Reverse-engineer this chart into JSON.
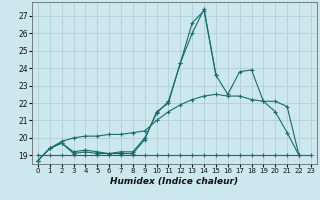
{
  "title": "",
  "xlabel": "Humidex (Indice chaleur)",
  "bg_color": "#cce8ee",
  "grid_color": "#aacccc",
  "line_color": "#1a6b6b",
  "xlim": [
    -0.5,
    23.5
  ],
  "ylim": [
    18.5,
    27.8
  ],
  "xticks": [
    0,
    1,
    2,
    3,
    4,
    5,
    6,
    7,
    8,
    9,
    10,
    11,
    12,
    13,
    14,
    15,
    16,
    17,
    18,
    19,
    20,
    21,
    22,
    23
  ],
  "yticks": [
    19,
    20,
    21,
    22,
    23,
    24,
    25,
    26,
    27
  ],
  "series": [
    {
      "x": [
        0,
        1,
        2,
        3,
        4,
        5,
        6,
        7,
        8,
        9,
        10,
        11,
        12,
        13,
        14,
        15,
        16,
        17,
        18,
        19,
        20,
        21,
        22
      ],
      "y": [
        18.7,
        19.4,
        19.7,
        19.1,
        19.2,
        19.1,
        19.1,
        19.1,
        19.1,
        19.9,
        21.5,
        22.0,
        24.3,
        26.6,
        27.3,
        23.6,
        22.5,
        23.8,
        23.9,
        22.1,
        21.5,
        20.3,
        19.0
      ]
    },
    {
      "x": [
        0,
        1,
        2,
        3,
        4,
        5,
        6,
        7,
        8,
        9,
        10,
        11,
        12,
        13,
        14,
        15
      ],
      "y": [
        18.7,
        19.4,
        19.7,
        19.2,
        19.3,
        19.2,
        19.1,
        19.2,
        19.2,
        20.0,
        21.4,
        22.1,
        24.3,
        26.0,
        27.4,
        23.6
      ]
    },
    {
      "x": [
        0,
        1,
        2,
        3,
        4,
        5,
        6,
        7,
        8,
        9,
        10,
        11,
        12,
        13,
        14,
        15,
        16,
        17,
        18,
        19,
        20,
        21,
        22
      ],
      "y": [
        18.7,
        19.4,
        19.8,
        20.0,
        20.1,
        20.1,
        20.2,
        20.2,
        20.3,
        20.4,
        21.0,
        21.5,
        21.9,
        22.2,
        22.4,
        22.5,
        22.4,
        22.4,
        22.2,
        22.1,
        22.1,
        21.8,
        19.0
      ]
    },
    {
      "x": [
        0,
        1,
        2,
        3,
        4,
        5,
        6,
        7,
        8,
        9,
        10,
        11,
        12,
        13,
        14,
        15,
        16,
        17,
        18,
        19,
        20,
        21,
        22,
        23
      ],
      "y": [
        19.0,
        19.0,
        19.0,
        19.0,
        19.0,
        19.0,
        19.0,
        19.0,
        19.0,
        19.0,
        19.0,
        19.0,
        19.0,
        19.0,
        19.0,
        19.0,
        19.0,
        19.0,
        19.0,
        19.0,
        19.0,
        19.0,
        19.0,
        19.0
      ]
    }
  ]
}
